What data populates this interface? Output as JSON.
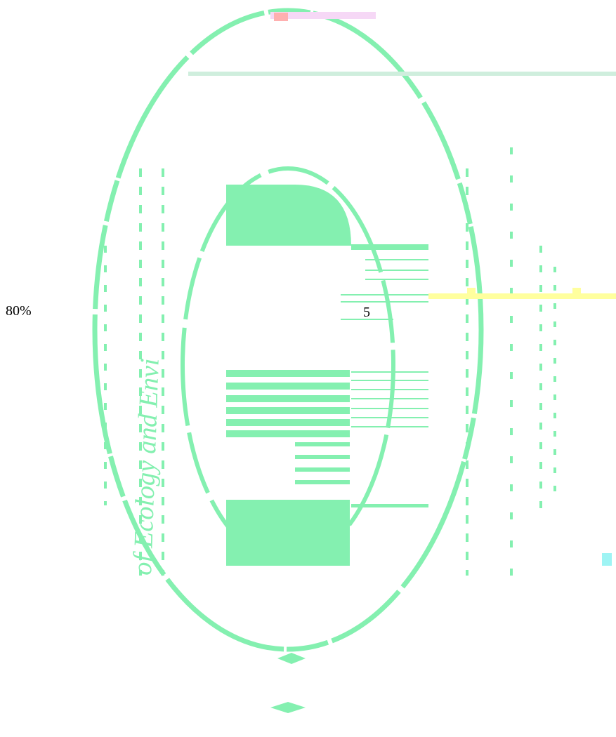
{
  "viewer": {
    "zoom_label": "80%",
    "page_number": "5"
  },
  "seal": {
    "arc_text": "of Ecology and Envi",
    "icon": "university-seal-logo",
    "primary_color": "#84f0b0",
    "secondary_color": "#ffff9e",
    "accent_color": "#ffb0b0"
  }
}
